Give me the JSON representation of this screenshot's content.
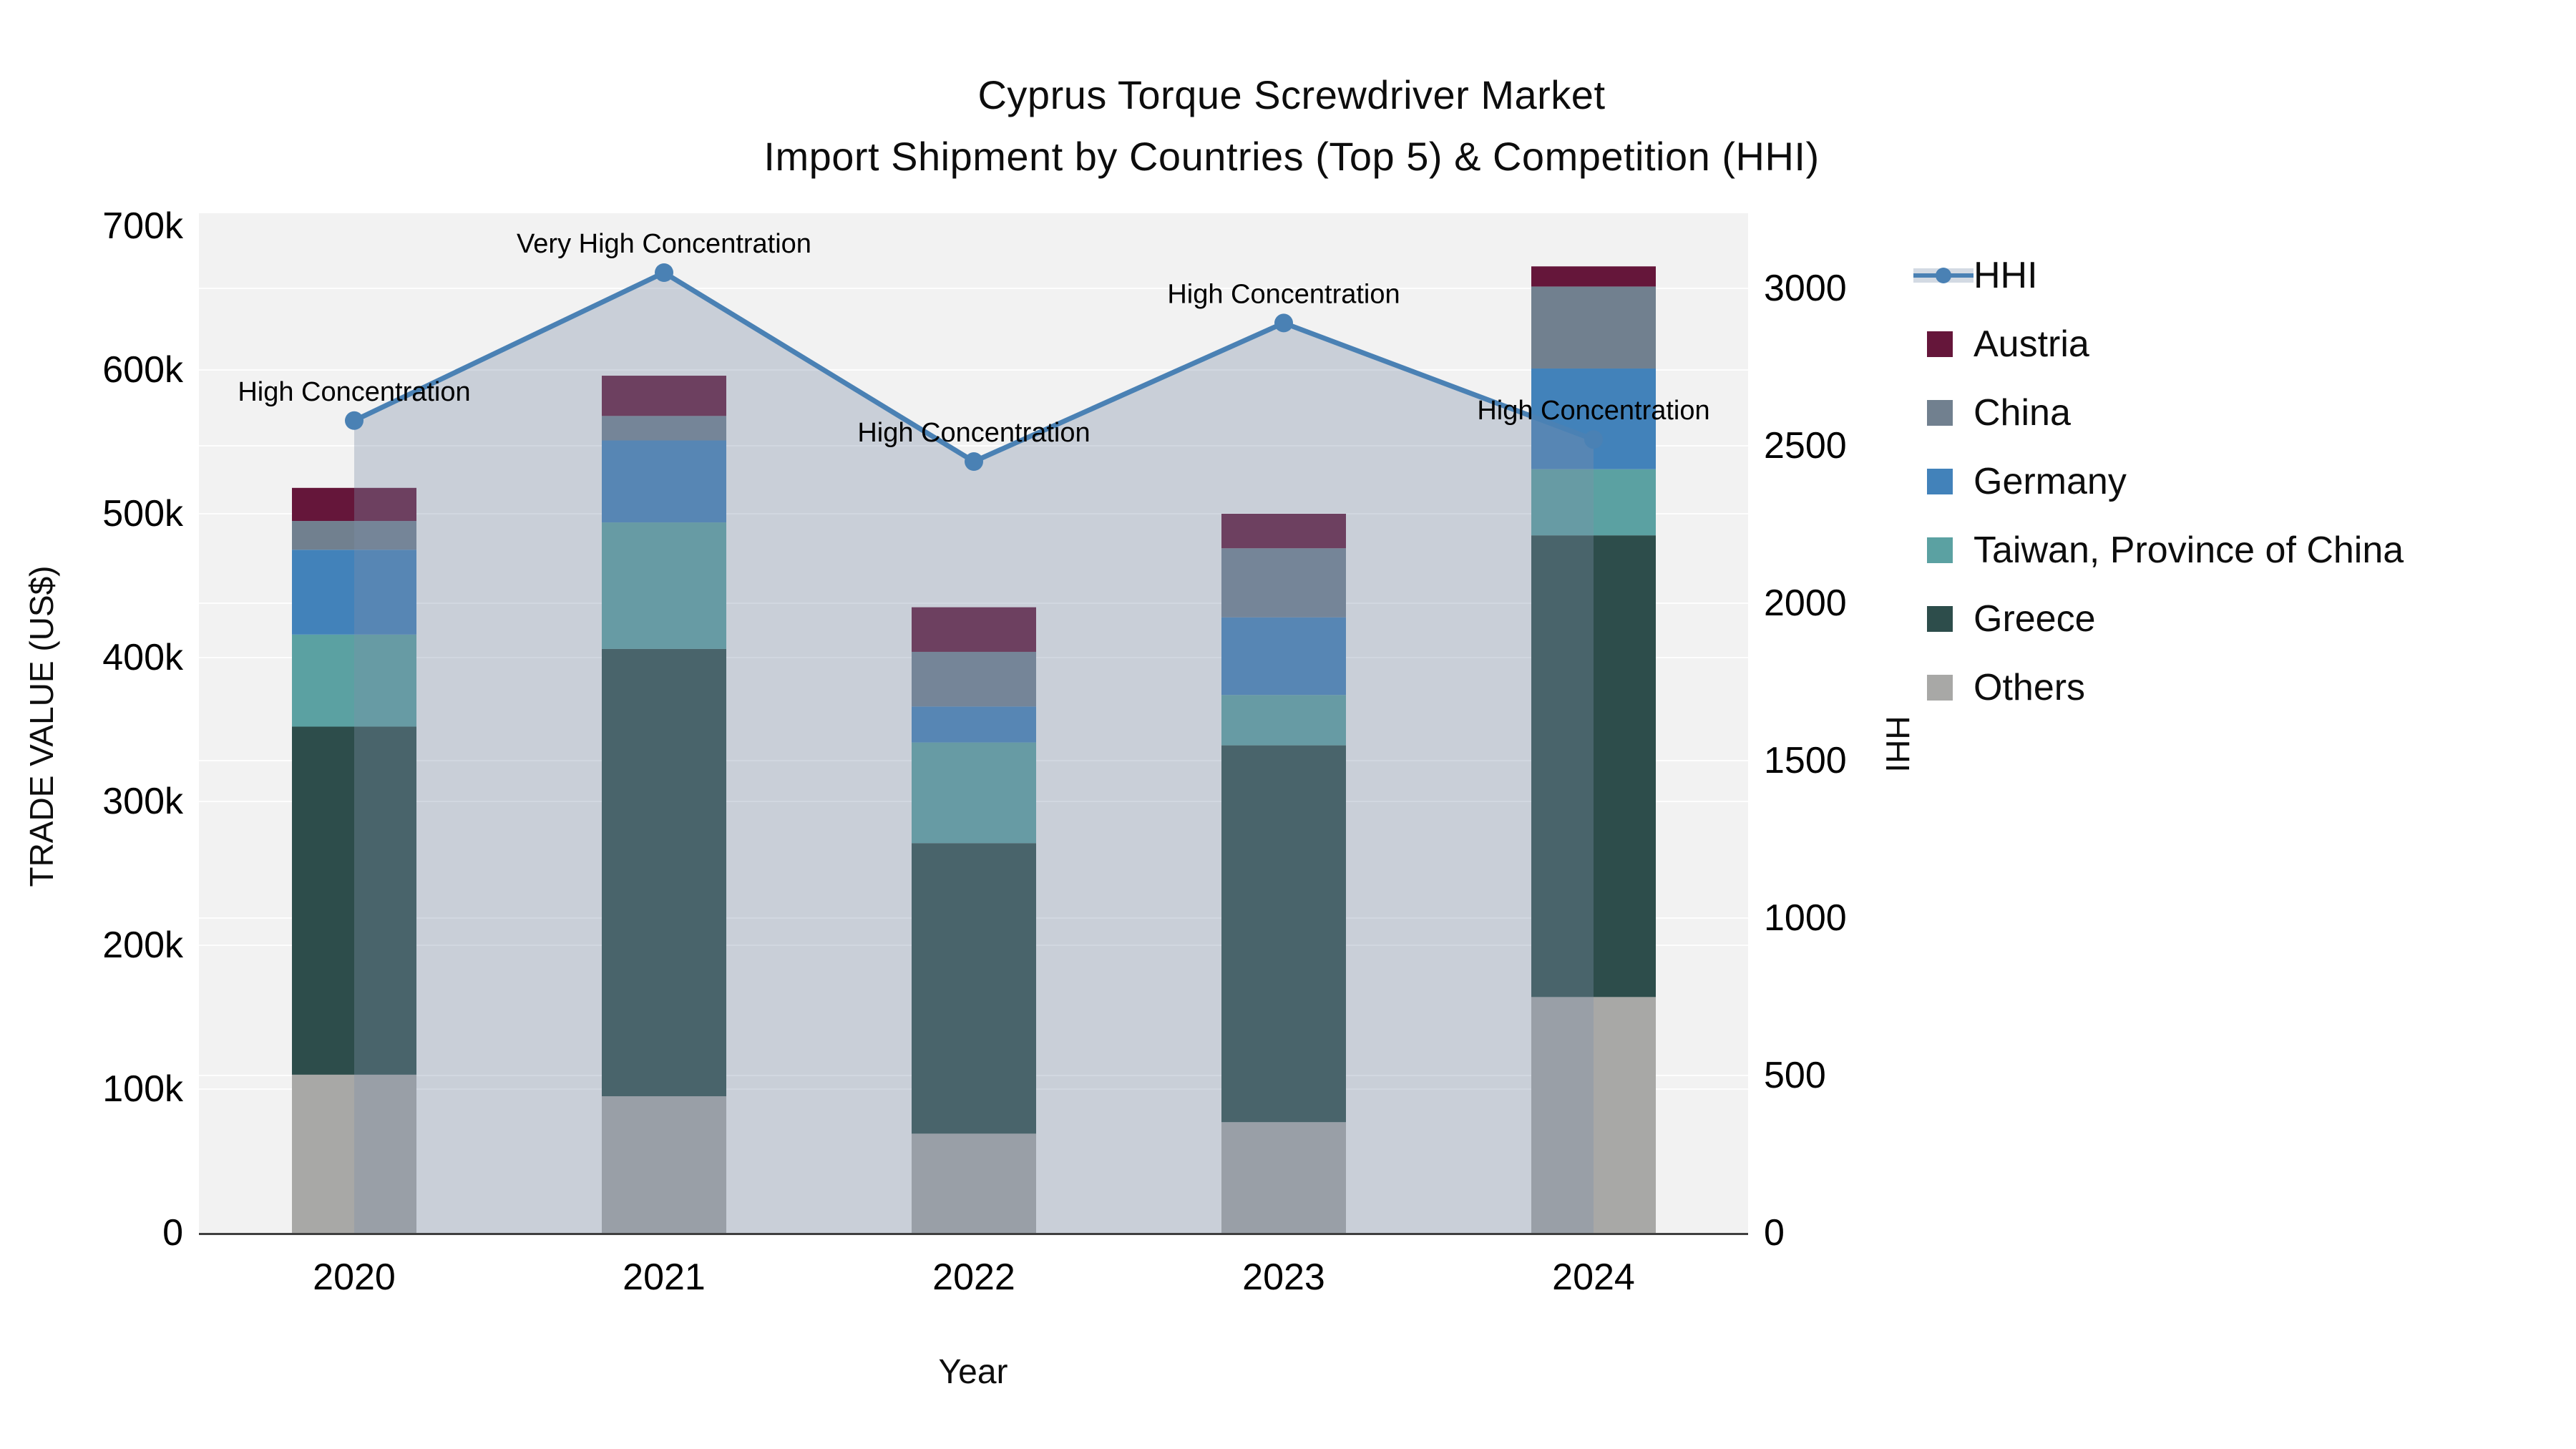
{
  "title": {
    "line1": "Cyprus Torque Screwdriver Market",
    "line2": "Import Shipment by Countries (Top 5) & Competition (HHI)"
  },
  "axes": {
    "y_left": {
      "title": "TRADE VALUE (US$)",
      "ticks": [
        "0",
        "100k",
        "200k",
        "300k",
        "400k",
        "500k",
        "600k",
        "700k"
      ]
    },
    "y_right": {
      "title": "HHI",
      "ticks": [
        "0",
        "500",
        "1000",
        "1500",
        "2000",
        "2500",
        "3000"
      ]
    },
    "x": {
      "title": "Year",
      "ticks": [
        "2020",
        "2021",
        "2022",
        "2023",
        "2024"
      ]
    }
  },
  "legend": {
    "items": [
      {
        "label": "HHI",
        "kind": "line",
        "color": "#4A81B4",
        "band": "#D3DAE3"
      },
      {
        "label": "Austria",
        "kind": "square",
        "color": "#65163A"
      },
      {
        "label": "China",
        "kind": "square",
        "color": "#71808F"
      },
      {
        "label": "Germany",
        "kind": "square",
        "color": "#4282BA"
      },
      {
        "label": "Taiwan, Province of China",
        "kind": "square",
        "color": "#5BA1A2"
      },
      {
        "label": "Greece",
        "kind": "square",
        "color": "#2D4D4B"
      },
      {
        "label": "Others",
        "kind": "square",
        "color": "#A8A8A6"
      }
    ]
  },
  "chart_data": {
    "type": "bar",
    "subtype": "stacked-bar-with-line",
    "categories": [
      "2020",
      "2021",
      "2022",
      "2023",
      "2024"
    ],
    "xlabel": "Year",
    "ylabel": "TRADE VALUE (US$)",
    "ylabel_right": "HHI",
    "ylim_left": [
      0,
      700000
    ],
    "ylim_right": [
      0,
      3000
    ],
    "grid": true,
    "legend_position": "right",
    "series": [
      {
        "name": "Austria",
        "color": "#65163A",
        "values": [
          23000,
          28000,
          31000,
          24000,
          14000
        ]
      },
      {
        "name": "China",
        "color": "#71808F",
        "values": [
          20000,
          17000,
          38000,
          48000,
          57000
        ]
      },
      {
        "name": "Germany",
        "color": "#4282BA",
        "values": [
          59000,
          57000,
          25000,
          54000,
          70000
        ]
      },
      {
        "name": "Taiwan, Province of China",
        "color": "#5BA1A2",
        "values": [
          64000,
          88000,
          70000,
          35000,
          46000
        ]
      },
      {
        "name": "Greece",
        "color": "#2D4D4B",
        "values": [
          242000,
          311000,
          202000,
          262000,
          321000
        ]
      },
      {
        "name": "Others",
        "color": "#A8A8A6",
        "values": [
          110000,
          95000,
          69000,
          77000,
          164000
        ]
      }
    ],
    "totals": [
      518000,
      596000,
      435000,
      500000,
      672000
    ],
    "line_series": {
      "name": "HHI",
      "color": "#4A81B4",
      "fill": "rgba(125,143,168,0.35)",
      "values": [
        2580,
        3050,
        2450,
        2890,
        2520
      ]
    },
    "annotations": [
      "High Concentration",
      "Very High Concentration",
      "High Concentration",
      "High Concentration",
      "High Concentration"
    ],
    "plot_bg": "#F2F2F2",
    "gridline_color": "#FFFFFF",
    "axisline_color": "#3F3F3F"
  }
}
